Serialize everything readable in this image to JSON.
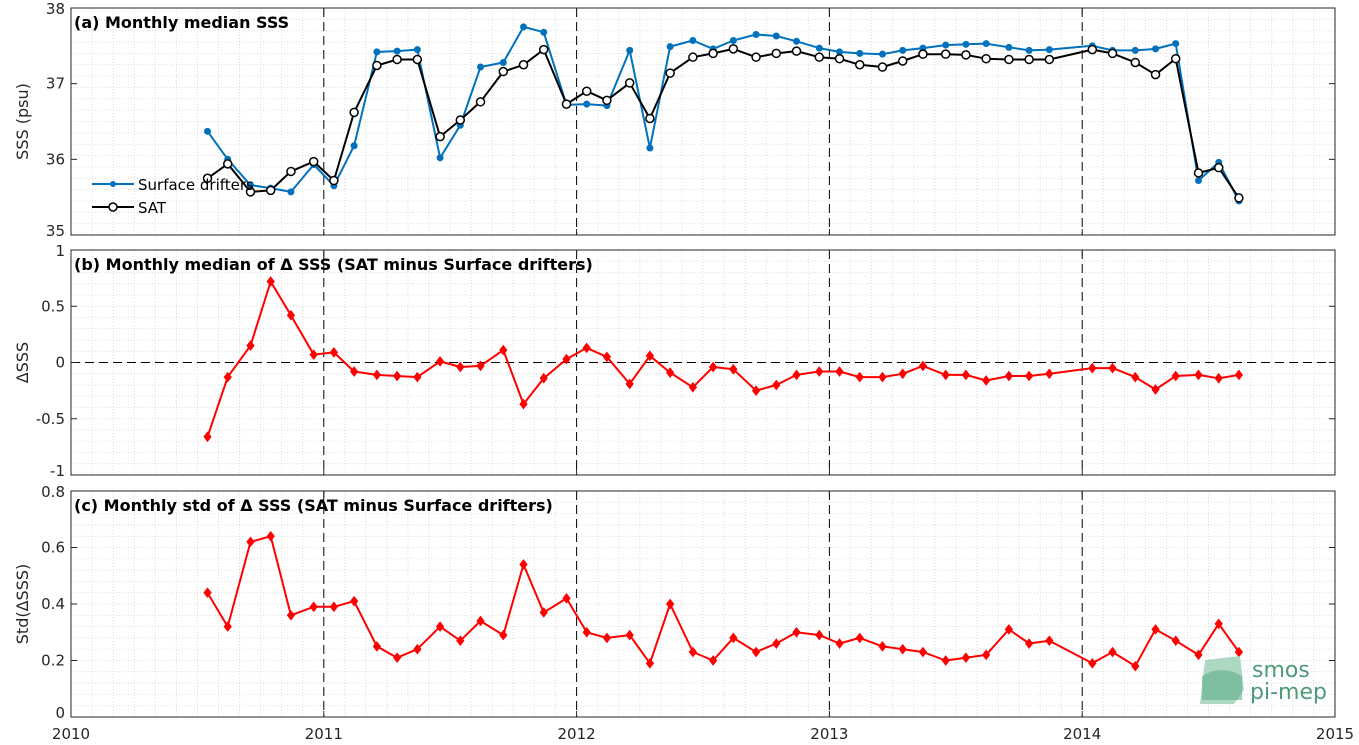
{
  "chart_data": [
    {
      "type": "line",
      "title": "(a) Monthly median SSS",
      "ylabel": "SSS (psu)",
      "xlim": [
        2010,
        2015
      ],
      "ylim": [
        35,
        38
      ],
      "yticks": [
        "35",
        "36",
        "37",
        "38"
      ],
      "grid": true,
      "legend": "left",
      "x": [
        2010.54,
        2010.62,
        2010.71,
        2010.79,
        2010.87,
        2010.96,
        2011.04,
        2011.12,
        2011.21,
        2011.29,
        2011.37,
        2011.46,
        2011.54,
        2011.62,
        2011.71,
        2011.79,
        2011.87,
        2011.96,
        2012.04,
        2012.12,
        2012.21,
        2012.29,
        2012.37,
        2012.46,
        2012.54,
        2012.62,
        2012.71,
        2012.79,
        2012.87,
        2012.96,
        2013.04,
        2013.12,
        2013.21,
        2013.29,
        2013.37,
        2013.46,
        2013.54,
        2013.62,
        2013.71,
        2013.79,
        2013.87,
        2014.04,
        2014.12,
        2014.21,
        2014.29,
        2014.37,
        2014.46,
        2014.54,
        2014.62
      ],
      "series": [
        {
          "name": "Surface drifters",
          "color": "#0072bd",
          "marker": "asterisk",
          "values": [
            36.37,
            36.0,
            35.66,
            35.62,
            35.57,
            35.93,
            35.65,
            36.18,
            37.42,
            37.43,
            37.45,
            36.02,
            36.45,
            37.22,
            37.28,
            37.75,
            37.68,
            36.72,
            36.73,
            36.71,
            37.44,
            36.15,
            37.49,
            37.57,
            37.46,
            37.57,
            37.65,
            37.63,
            37.56,
            37.47,
            37.42,
            37.4,
            37.39,
            37.44,
            37.47,
            37.51,
            37.52,
            37.53,
            37.48,
            37.44,
            37.45,
            37.5,
            37.44,
            37.44,
            37.46,
            37.53,
            35.72,
            35.96,
            35.45
          ]
        },
        {
          "name": "SAT",
          "color": "#000000",
          "marker": "circle",
          "values": [
            35.75,
            35.94,
            35.57,
            35.59,
            35.84,
            35.97,
            35.72,
            36.62,
            37.24,
            37.32,
            37.32,
            36.3,
            36.52,
            36.76,
            37.16,
            37.25,
            37.45,
            36.73,
            36.9,
            36.78,
            37.01,
            36.54,
            37.14,
            37.35,
            37.4,
            37.46,
            37.35,
            37.4,
            37.43,
            37.35,
            37.33,
            37.25,
            37.22,
            37.3,
            37.39,
            37.39,
            37.38,
            37.33,
            37.32,
            37.32,
            37.32,
            37.45,
            37.4,
            37.28,
            37.12,
            37.33,
            35.82,
            35.89,
            35.49
          ]
        }
      ]
    },
    {
      "type": "line",
      "title": "(b) Monthly median of Δ SSS (SAT minus Surface drifters)",
      "ylabel": "ΔSSS",
      "xlim": [
        2010,
        2015
      ],
      "ylim": [
        -1,
        1
      ],
      "yticks": [
        "-1",
        "-0.5",
        "0",
        "0.5",
        "1"
      ],
      "grid": true,
      "reference_line": 0,
      "series": [
        {
          "name": "",
          "color": "#ff0000",
          "marker": "diamond",
          "values": [
            -0.66,
            -0.13,
            0.15,
            0.72,
            0.42,
            0.07,
            0.09,
            -0.08,
            -0.11,
            -0.12,
            -0.13,
            0.01,
            -0.04,
            -0.03,
            0.11,
            -0.37,
            -0.14,
            0.03,
            0.13,
            0.05,
            -0.19,
            0.06,
            -0.09,
            -0.22,
            -0.04,
            -0.06,
            -0.25,
            -0.2,
            -0.11,
            -0.08,
            -0.08,
            -0.13,
            -0.13,
            -0.1,
            -0.03,
            -0.11,
            -0.11,
            -0.16,
            -0.12,
            -0.12,
            -0.1,
            -0.05,
            -0.05,
            -0.13,
            -0.24,
            -0.12,
            -0.11,
            -0.14,
            -0.11
          ]
        }
      ]
    },
    {
      "type": "line",
      "title": "(c) Monthly std of Δ SSS (SAT minus Surface drifters)",
      "ylabel": "Std(ΔSSS)",
      "xlim": [
        2010,
        2015
      ],
      "ylim": [
        0,
        0.8
      ],
      "yticks": [
        "0",
        "0.2",
        "0.4",
        "0.6",
        "0.8"
      ],
      "xticks": [
        "2010",
        "2011",
        "2012",
        "2013",
        "2014",
        "2015"
      ],
      "grid": true,
      "series": [
        {
          "name": "",
          "color": "#ff0000",
          "marker": "diamond",
          "values": [
            0.44,
            0.32,
            0.62,
            0.64,
            0.36,
            0.39,
            0.39,
            0.41,
            0.25,
            0.21,
            0.24,
            0.32,
            0.27,
            0.34,
            0.29,
            0.54,
            0.37,
            0.42,
            0.3,
            0.28,
            0.29,
            0.19,
            0.4,
            0.23,
            0.2,
            0.28,
            0.23,
            0.26,
            0.3,
            0.29,
            0.26,
            0.28,
            0.25,
            0.24,
            0.23,
            0.2,
            0.21,
            0.22,
            0.31,
            0.26,
            0.27,
            0.19,
            0.23,
            0.18,
            0.31,
            0.27,
            0.22,
            0.33,
            0.23
          ]
        }
      ]
    }
  ],
  "logo": {
    "line1": "smos",
    "line2": "pi-mep"
  }
}
